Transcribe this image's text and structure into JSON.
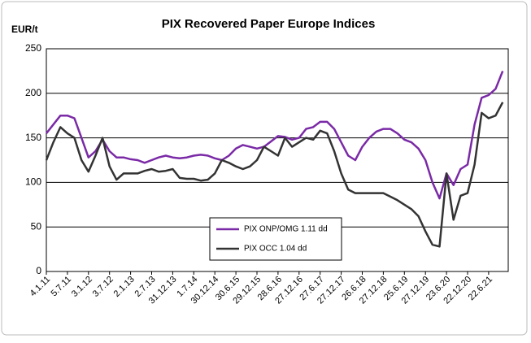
{
  "chart_data": {
    "type": "line",
    "title": "PIX Recovered Paper Europe Indices",
    "y_label": "EUR/t",
    "categories": [
      "4.1.11",
      null,
      null,
      "5.7.11",
      null,
      null,
      "3.1.12",
      null,
      null,
      "3.7.12",
      null,
      null,
      "2.1.13",
      null,
      null,
      "2.7.13",
      null,
      null,
      "31.12.13",
      null,
      null,
      "1.7.14",
      null,
      null,
      "30.12.14",
      null,
      null,
      "30.6.15",
      null,
      null,
      "29.12.15",
      null,
      null,
      "28.6.16",
      null,
      null,
      "27.12.16",
      null,
      null,
      "27.6.17",
      null,
      null,
      "27.12.17",
      null,
      null,
      "26.6.18",
      null,
      null,
      "27.12.18",
      null,
      null,
      "25.6.19",
      null,
      null,
      "27.12.19",
      null,
      null,
      "23.6.20",
      null,
      null,
      "22.12.20",
      null,
      null,
      "22.6.21",
      null,
      null
    ],
    "series": [
      {
        "name": "PIX ONP/OMG 1.11 dd",
        "color": "#7a2aa6",
        "values": [
          155,
          165,
          175,
          175,
          172,
          150,
          128,
          135,
          148,
          135,
          128,
          128,
          126,
          125,
          122,
          125,
          128,
          130,
          128,
          127,
          128,
          130,
          131,
          130,
          127,
          125,
          130,
          138,
          142,
          140,
          138,
          140,
          146,
          152,
          151,
          148,
          150,
          160,
          162,
          168,
          168,
          160,
          145,
          130,
          125,
          140,
          150,
          157,
          160,
          160,
          155,
          148,
          145,
          138,
          125,
          100,
          82,
          110,
          97,
          115,
          120,
          165,
          195,
          198,
          205,
          225
        ]
      },
      {
        "name": "PIX OCC 1.04 dd",
        "color": "#333333",
        "values": [
          125,
          145,
          162,
          155,
          150,
          125,
          112,
          130,
          150,
          118,
          103,
          110,
          110,
          110,
          113,
          115,
          112,
          113,
          115,
          105,
          104,
          104,
          102,
          103,
          110,
          125,
          122,
          118,
          115,
          118,
          125,
          140,
          135,
          130,
          150,
          140,
          145,
          150,
          148,
          158,
          155,
          135,
          110,
          92,
          88,
          88,
          88,
          88,
          88,
          84,
          80,
          75,
          70,
          62,
          45,
          30,
          28,
          110,
          58,
          85,
          88,
          120,
          178,
          172,
          175,
          190
        ]
      }
    ],
    "ylim": [
      0,
      250
    ],
    "yticks": [
      0,
      50,
      100,
      150,
      200,
      250
    ],
    "grid": true
  }
}
